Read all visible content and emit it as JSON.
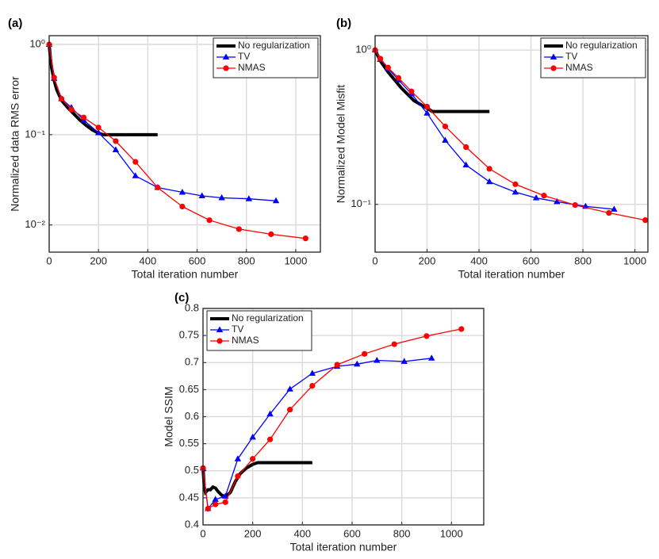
{
  "chart_data": [
    {
      "type": "line",
      "panel": "(a)",
      "xlabel": "Total iteration number",
      "ylabel": "Normalized data RMS error",
      "yscale": "log",
      "grid": true,
      "legend": "top-right",
      "xlim": [
        0,
        1100
      ],
      "ylim": [
        0.005,
        1.25
      ],
      "xticks": [
        0,
        200,
        400,
        600,
        800,
        1000
      ],
      "yticks": [
        {
          "value": 1,
          "label": "10⁰"
        },
        {
          "value": 0.1,
          "label": "10⁻¹"
        },
        {
          "value": 0.01,
          "label": "10⁻²"
        }
      ],
      "series": [
        {
          "name": "No regularization",
          "color": "#000000",
          "marker": "none",
          "x": [
            0,
            5,
            10,
            20,
            30,
            50,
            75,
            100,
            125,
            150,
            175,
            200,
            220,
            300,
            440
          ],
          "values": [
            1,
            0.7,
            0.55,
            0.4,
            0.32,
            0.24,
            0.2,
            0.17,
            0.145,
            0.127,
            0.113,
            0.104,
            0.1,
            0.1,
            0.1
          ]
        },
        {
          "name": "TV",
          "color": "#0000ff",
          "marker": "triangle",
          "x": [
            0,
            20,
            50,
            90,
            140,
            200,
            270,
            350,
            440,
            540,
            620,
            700,
            810,
            920
          ],
          "values": [
            1,
            0.42,
            0.25,
            0.2,
            0.145,
            0.105,
            0.068,
            0.035,
            0.026,
            0.023,
            0.021,
            0.02,
            0.0195,
            0.0185
          ]
        },
        {
          "name": "NMAS",
          "color": "#ff0000",
          "marker": "circle",
          "x": [
            0,
            20,
            50,
            90,
            140,
            200,
            270,
            350,
            440,
            540,
            650,
            770,
            900,
            1040
          ],
          "values": [
            1,
            0.43,
            0.25,
            0.19,
            0.155,
            0.12,
            0.085,
            0.05,
            0.026,
            0.016,
            0.0113,
            0.009,
            0.0079,
            0.0071
          ]
        }
      ]
    },
    {
      "type": "line",
      "panel": "(b)",
      "xlabel": "Total iteration number",
      "ylabel": "Normalized Model Misfit",
      "yscale": "log",
      "grid": true,
      "legend": "top-right",
      "xlim": [
        0,
        1050
      ],
      "ylim": [
        0.049,
        1.24
      ],
      "xticks": [
        0,
        200,
        400,
        600,
        800,
        1000
      ],
      "yticks": [
        {
          "value": 1,
          "label": "10⁰"
        },
        {
          "value": 0.1,
          "label": "10⁻¹"
        }
      ],
      "series": [
        {
          "name": "No regularization",
          "color": "#000000",
          "marker": "none",
          "x": [
            0,
            20,
            50,
            100,
            150,
            200,
            220,
            440
          ],
          "values": [
            1,
            0.85,
            0.72,
            0.57,
            0.47,
            0.42,
            0.4,
            0.4
          ]
        },
        {
          "name": "TV",
          "color": "#0000ff",
          "marker": "triangle",
          "x": [
            0,
            20,
            50,
            90,
            140,
            200,
            270,
            350,
            440,
            540,
            620,
            700,
            810,
            920
          ],
          "values": [
            1,
            0.87,
            0.76,
            0.64,
            0.52,
            0.39,
            0.26,
            0.18,
            0.14,
            0.12,
            0.11,
            0.104,
            0.097,
            0.093
          ]
        },
        {
          "name": "NMAS",
          "color": "#ff0000",
          "marker": "circle",
          "x": [
            0,
            20,
            50,
            90,
            140,
            200,
            270,
            350,
            440,
            540,
            650,
            770,
            900,
            1040
          ],
          "values": [
            1,
            0.88,
            0.77,
            0.66,
            0.54,
            0.43,
            0.32,
            0.235,
            0.17,
            0.135,
            0.114,
            0.099,
            0.088,
            0.079
          ]
        }
      ]
    },
    {
      "type": "line",
      "panel": "(c)",
      "xlabel": "Total iteration number",
      "ylabel": "Model SSIM",
      "yscale": "linear",
      "grid": true,
      "legend": "top-left",
      "xlim": [
        0,
        1130
      ],
      "ylim": [
        0.4,
        0.8
      ],
      "xticks": [
        0,
        200,
        400,
        600,
        800,
        1000
      ],
      "yticks": [
        0.4,
        0.45,
        0.5,
        0.55,
        0.6,
        0.65,
        0.7,
        0.75,
        0.8
      ],
      "series": [
        {
          "name": "No regularization",
          "color": "#000000",
          "marker": "none",
          "x": [
            0,
            5,
            10,
            20,
            30,
            40,
            50,
            60,
            75,
            90,
            110,
            130,
            150,
            175,
            200,
            220,
            440
          ],
          "values": [
            0.505,
            0.47,
            0.46,
            0.465,
            0.465,
            0.47,
            0.468,
            0.462,
            0.455,
            0.452,
            0.46,
            0.48,
            0.495,
            0.505,
            0.512,
            0.515,
            0.515
          ]
        },
        {
          "name": "TV",
          "color": "#0000ff",
          "marker": "triangle",
          "x": [
            0,
            20,
            50,
            90,
            140,
            200,
            270,
            350,
            440,
            540,
            620,
            700,
            810,
            920
          ],
          "values": [
            0.505,
            0.43,
            0.447,
            0.453,
            0.522,
            0.562,
            0.605,
            0.651,
            0.68,
            0.693,
            0.697,
            0.704,
            0.702,
            0.708
          ]
        },
        {
          "name": "NMAS",
          "color": "#ff0000",
          "marker": "circle",
          "x": [
            0,
            20,
            50,
            90,
            140,
            200,
            270,
            350,
            440,
            540,
            650,
            770,
            900,
            1040
          ],
          "values": [
            0.505,
            0.43,
            0.438,
            0.442,
            0.49,
            0.522,
            0.558,
            0.613,
            0.657,
            0.696,
            0.716,
            0.734,
            0.749,
            0.762
          ]
        }
      ]
    }
  ]
}
